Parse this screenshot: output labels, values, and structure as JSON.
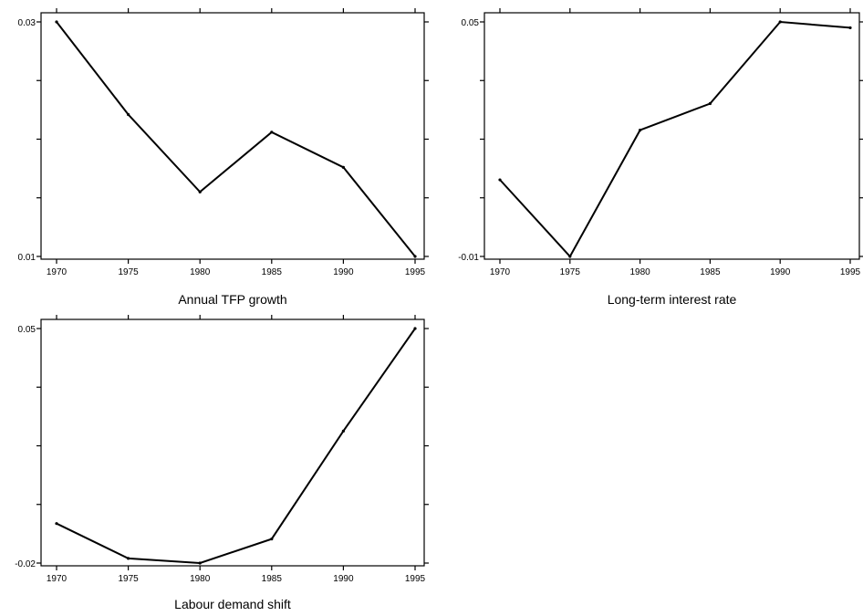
{
  "chart_data": [
    {
      "type": "line",
      "xlabel": "Annual TFP growth",
      "x": [
        1970,
        1975,
        1980,
        1985,
        1990,
        1995
      ],
      "y": [
        0.03,
        0.0221,
        0.0155,
        0.0206,
        0.0176,
        0.01
      ],
      "xticks": [
        "1970",
        "1975",
        "1980",
        "1985",
        "1990",
        "1995"
      ],
      "yticks": [
        "0.03",
        "0.01"
      ],
      "ylim": [
        0.01,
        0.03
      ],
      "grid": false
    },
    {
      "type": "line",
      "xlabel": "Long-term interest rate",
      "x": [
        1970,
        1975,
        1980,
        1985,
        1990,
        1995
      ],
      "y": [
        0.0096,
        -0.01,
        0.0223,
        0.0291,
        0.05,
        0.0485
      ],
      "xticks": [
        "1970",
        "1975",
        "1980",
        "1985",
        "1990",
        "1995"
      ],
      "yticks": [
        "0.05",
        "-0.01"
      ],
      "ylim": [
        -0.01,
        0.05
      ],
      "grid": false
    },
    {
      "type": "line",
      "xlabel": "Labour demand shift",
      "x": [
        1970,
        1975,
        1980,
        1985,
        1990,
        1995
      ],
      "y": [
        -0.0082,
        -0.0186,
        -0.02,
        -0.0128,
        0.0194,
        0.05
      ],
      "xticks": [
        "1970",
        "1975",
        "1980",
        "1985",
        "1990",
        "1995"
      ],
      "yticks": [
        "0.05",
        "-0.02"
      ],
      "ylim": [
        -0.02,
        0.05
      ],
      "grid": false
    }
  ]
}
